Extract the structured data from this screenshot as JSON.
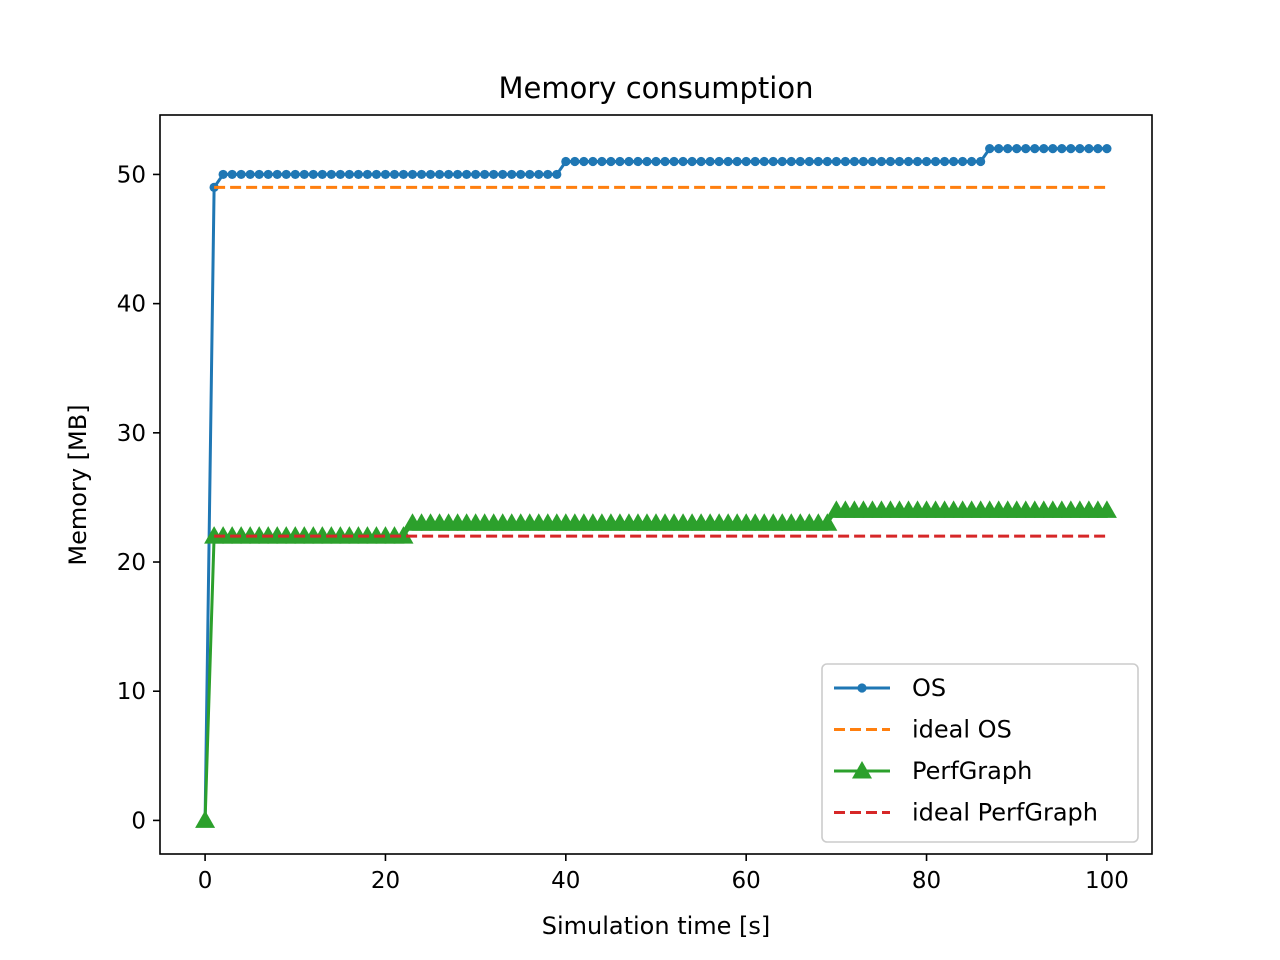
{
  "chart_data": {
    "type": "line",
    "title": "Memory consumption",
    "xlabel": "Simulation time [s]",
    "ylabel": "Memory [MB]",
    "xlim": [
      -5,
      105
    ],
    "ylim": [
      -2.6,
      54.6
    ],
    "xticks": [
      0,
      20,
      40,
      60,
      80,
      100
    ],
    "yticks": [
      0,
      10,
      20,
      30,
      40,
      50
    ],
    "grid": false,
    "legend_position": "lower-right",
    "series": [
      {
        "name": "OS",
        "color": "#1f77b4",
        "style": "solid",
        "marker": "circle",
        "segments": [
          {
            "from": 0,
            "to": 0,
            "value": 0
          },
          {
            "from": 1,
            "to": 1,
            "value": 49
          },
          {
            "from": 2,
            "to": 39,
            "value": 50
          },
          {
            "from": 40,
            "to": 86,
            "value": 51
          },
          {
            "from": 87,
            "to": 100,
            "value": 52
          }
        ]
      },
      {
        "name": "ideal OS",
        "color": "#ff7f0e",
        "style": "dashed",
        "marker": "none",
        "x": [
          1,
          100
        ],
        "y": [
          49,
          49
        ]
      },
      {
        "name": "PerfGraph",
        "color": "#2ca02c",
        "style": "solid",
        "marker": "triangle",
        "segments": [
          {
            "from": 0,
            "to": 0,
            "value": 0
          },
          {
            "from": 1,
            "to": 22,
            "value": 22
          },
          {
            "from": 23,
            "to": 69,
            "value": 23
          },
          {
            "from": 70,
            "to": 100,
            "value": 24
          }
        ]
      },
      {
        "name": "ideal PerfGraph",
        "color": "#d62728",
        "style": "dashed",
        "marker": "none",
        "x": [
          1,
          100
        ],
        "y": [
          22,
          22
        ]
      }
    ]
  }
}
